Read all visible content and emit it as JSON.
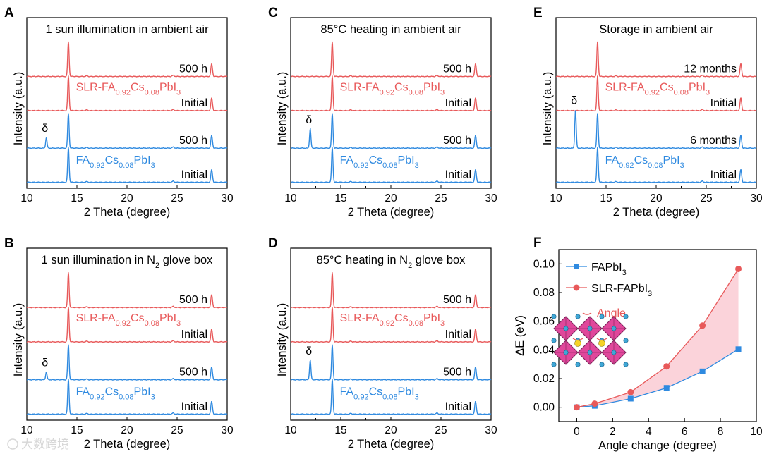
{
  "figure": {
    "watermark": "大数跨境"
  },
  "chart_data": [
    {
      "id": "A",
      "type": "line",
      "panel_letter": "A",
      "title": "1 sun illumination in ambient air",
      "xlabel": "2 Theta (degree)",
      "ylabel": "Intensity (a.u.)",
      "xlim": [
        10,
        30
      ],
      "xticks": [
        "10",
        "15",
        "20",
        "25",
        "30"
      ],
      "traces": [
        {
          "label": "500 h",
          "color": "#e8595a",
          "delta_peak": false,
          "group_label": ""
        },
        {
          "label": "Initial",
          "color": "#e8595a",
          "delta_peak": false,
          "group_label": "SLR-FA0.92Cs0.08PbI3"
        },
        {
          "label": "500 h",
          "color": "#2f8ae0",
          "delta_peak": true,
          "group_label": ""
        },
        {
          "label": "Initial",
          "color": "#2f8ae0",
          "delta_peak": false,
          "group_label": "FA0.92Cs0.08PbI3"
        }
      ],
      "delta_symbol": "δ",
      "groups": {
        "slr": {
          "prefix": "SLR-FA",
          "sub1": "0.92",
          "mid": "Cs",
          "sub2": "0.08",
          "suffix": "PbI",
          "sub3": "3"
        },
        "ref": {
          "prefix": "FA",
          "sub1": "0.92",
          "mid": "Cs",
          "sub2": "0.08",
          "suffix": "PbI",
          "sub3": "3"
        }
      }
    },
    {
      "id": "C",
      "type": "line",
      "panel_letter": "C",
      "title": "85°C heating in ambient air",
      "xlabel": "2 Theta (degree)",
      "ylabel": "Intensity (a.u.)",
      "xlim": [
        10,
        30
      ],
      "xticks": [
        "10",
        "15",
        "20",
        "25",
        "30"
      ],
      "traces": [
        {
          "label": "500 h",
          "color": "#e8595a",
          "delta_peak": false
        },
        {
          "label": "Initial",
          "color": "#e8595a",
          "delta_peak": false
        },
        {
          "label": "500 h",
          "color": "#2f8ae0",
          "delta_peak": true
        },
        {
          "label": "Initial",
          "color": "#2f8ae0",
          "delta_peak": false
        }
      ],
      "delta_symbol": "δ",
      "groups": {
        "slr": {
          "prefix": "SLR-FA",
          "sub1": "0.92",
          "mid": "Cs",
          "sub2": "0.08",
          "suffix": "PbI",
          "sub3": "3"
        },
        "ref": {
          "prefix": "FA",
          "sub1": "0.92",
          "mid": "Cs",
          "sub2": "0.08",
          "suffix": "PbI",
          "sub3": "3"
        }
      }
    },
    {
      "id": "E",
      "type": "line",
      "panel_letter": "E",
      "title": "Storage in ambient air",
      "xlabel": "2 Theta (degree)",
      "ylabel": "Intensity (a.u.)",
      "xlim": [
        10,
        30
      ],
      "xticks": [
        "10",
        "15",
        "20",
        "25",
        "30"
      ],
      "traces": [
        {
          "label": "12 months",
          "color": "#e8595a",
          "delta_peak": false
        },
        {
          "label": "Initial",
          "color": "#e8595a",
          "delta_peak": false
        },
        {
          "label": "6 months",
          "color": "#2f8ae0",
          "delta_peak": true
        },
        {
          "label": "Initial",
          "color": "#2f8ae0",
          "delta_peak": false
        }
      ],
      "delta_symbol": "δ",
      "groups": {
        "slr": {
          "prefix": "SLR-FA",
          "sub1": "0.92",
          "mid": "Cs",
          "sub2": "0.08",
          "suffix": "PbI",
          "sub3": "3"
        },
        "ref": {
          "prefix": "FA",
          "sub1": "0.92",
          "mid": "Cs",
          "sub2": "0.08",
          "suffix": "PbI",
          "sub3": "3"
        }
      }
    },
    {
      "id": "B",
      "type": "line",
      "panel_letter": "B",
      "title_prefix": "1 sun illumination in N",
      "title_sub": "2",
      "title_suffix": " glove box",
      "xlabel": "2 Theta (degree)",
      "ylabel": "Intensity (a.u.)",
      "xlim": [
        10,
        30
      ],
      "xticks": [
        "10",
        "15",
        "20",
        "25",
        "30"
      ],
      "traces": [
        {
          "label": "500 h",
          "color": "#e8595a",
          "delta_peak": false
        },
        {
          "label": "Initial",
          "color": "#e8595a",
          "delta_peak": false
        },
        {
          "label": "500 h",
          "color": "#2f8ae0",
          "delta_peak": true
        },
        {
          "label": "Initial",
          "color": "#2f8ae0",
          "delta_peak": false
        }
      ],
      "delta_symbol": "δ",
      "groups": {
        "slr": {
          "prefix": "SLR-FA",
          "sub1": "0.92",
          "mid": "Cs",
          "sub2": "0.08",
          "suffix": "PbI",
          "sub3": "3"
        },
        "ref": {
          "prefix": "FA",
          "sub1": "0.92",
          "mid": "Cs",
          "sub2": "0.08",
          "suffix": "PbI",
          "sub3": "3"
        }
      }
    },
    {
      "id": "D",
      "type": "line",
      "panel_letter": "D",
      "title_prefix": "85°C heating in N",
      "title_sub": "2",
      "title_suffix": " glove box",
      "xlabel": "2 Theta (degree)",
      "ylabel": "Intensity (a.u.)",
      "xlim": [
        10,
        30
      ],
      "xticks": [
        "10",
        "15",
        "20",
        "25",
        "30"
      ],
      "traces": [
        {
          "label": "500 h",
          "color": "#e8595a",
          "delta_peak": false
        },
        {
          "label": "Initial",
          "color": "#e8595a",
          "delta_peak": false
        },
        {
          "label": "500 h",
          "color": "#2f8ae0",
          "delta_peak": true
        },
        {
          "label": "Initial",
          "color": "#2f8ae0",
          "delta_peak": false
        }
      ],
      "delta_symbol": "δ",
      "groups": {
        "slr": {
          "prefix": "SLR-FA",
          "sub1": "0.92",
          "mid": "Cs",
          "sub2": "0.08",
          "suffix": "PbI",
          "sub3": "3"
        },
        "ref": {
          "prefix": "FA",
          "sub1": "0.92",
          "mid": "Cs",
          "sub2": "0.08",
          "suffix": "PbI",
          "sub3": "3"
        }
      }
    },
    {
      "id": "F",
      "type": "line",
      "panel_letter": "F",
      "xlabel": "Angle change (degree)",
      "ylabel": "ΔE (eV)",
      "xlim": [
        -1,
        10
      ],
      "ylim": [
        -0.01,
        0.11
      ],
      "xticks": [
        0,
        2,
        4,
        6,
        8,
        10
      ],
      "yticks": [
        0.0,
        0.02,
        0.04,
        0.06,
        0.08,
        0.1
      ],
      "legend_position": "top-left",
      "series": [
        {
          "name_prefix": "FAPbI",
          "name_sub": "3",
          "color": "#2f8ae0",
          "marker": "square",
          "x": [
            0,
            1,
            3,
            5,
            7,
            9
          ],
          "y": [
            0.0,
            0.001,
            0.006,
            0.0135,
            0.025,
            0.0405
          ]
        },
        {
          "name_prefix": "SLR-FAPbI",
          "name_sub": "3",
          "color": "#e8595a",
          "marker": "circle",
          "x": [
            0,
            1,
            3,
            5,
            7,
            9
          ],
          "y": [
            0.0,
            0.0025,
            0.0105,
            0.0285,
            0.057,
            0.0965
          ]
        }
      ],
      "fill_between_color": "#fbd3da",
      "inset_label": "Angle"
    }
  ]
}
